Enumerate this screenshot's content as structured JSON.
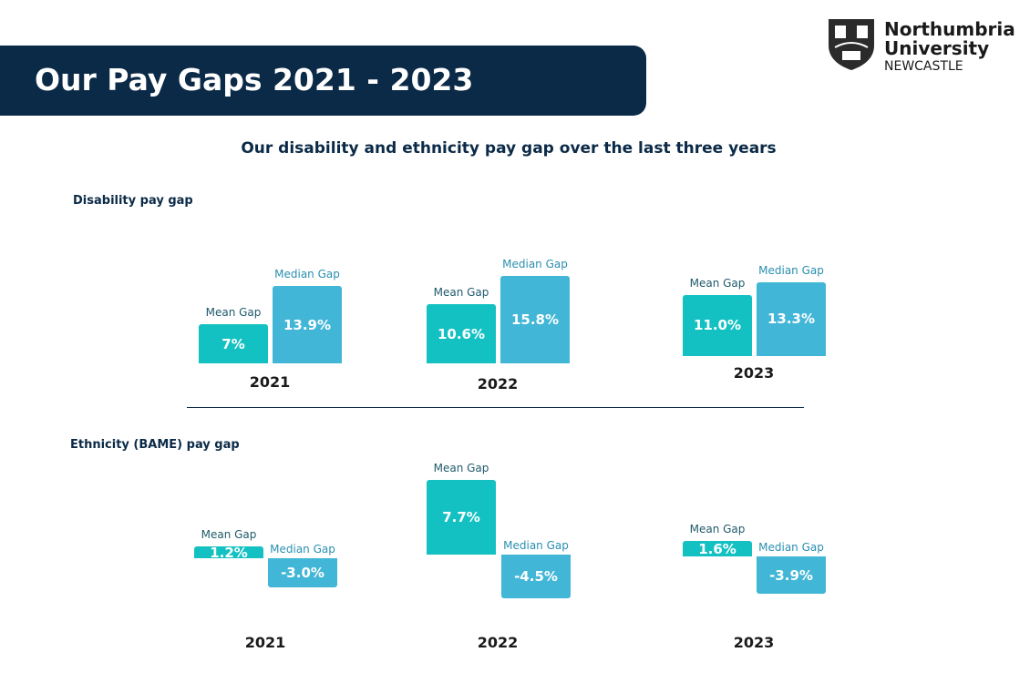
{
  "header": {
    "title": "Our Pay Gaps 2021 - 2023"
  },
  "logo": {
    "line1": "Northumbria",
    "line2": "University",
    "line3": "NEWCASTLE"
  },
  "colors": {
    "banner": "#0b2a47",
    "mean": "#13c1c3",
    "median": "#42b6d6"
  },
  "chart_data": [
    {
      "type": "bar",
      "title": "Our disability and ethnicity pay gap over the last three years",
      "subtitle": "Disability pay gap",
      "categories": [
        "2021",
        "2022",
        "2023"
      ],
      "series": [
        {
          "name": "Mean Gap",
          "values": [
            7,
            10.6,
            11.0
          ],
          "labels": [
            "7%",
            "10.6%",
            "11.0%"
          ]
        },
        {
          "name": "Median Gap",
          "values": [
            13.9,
            15.8,
            13.3
          ],
          "labels": [
            "13.9%",
            "15.8%",
            "13.3%"
          ]
        }
      ]
    },
    {
      "type": "bar",
      "subtitle": "Ethnicity (BAME) pay gap",
      "categories": [
        "2021",
        "2022",
        "2023"
      ],
      "series": [
        {
          "name": "Mean Gap",
          "values": [
            1.2,
            7.7,
            1.6
          ],
          "labels": [
            "1.2%",
            "7.7%",
            "1.6%"
          ]
        },
        {
          "name": "Median Gap",
          "values": [
            -3.0,
            -4.5,
            -3.9
          ],
          "labels": [
            "-3.0%",
            "-4.5%",
            "-3.9%"
          ]
        }
      ]
    }
  ]
}
